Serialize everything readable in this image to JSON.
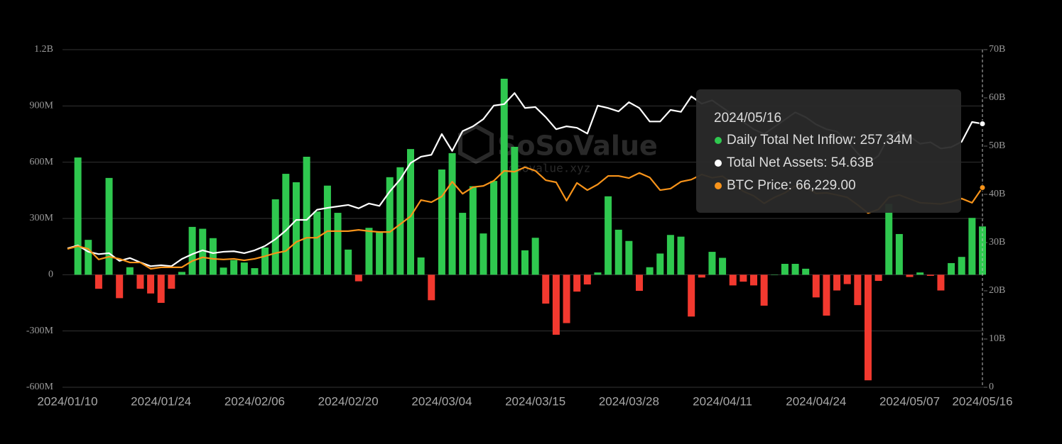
{
  "chart_data": {
    "type": "bar",
    "watermark": {
      "brand": "SoSoValue",
      "site": "sosovalue.xyz"
    },
    "categories": [
      "2024/01/10",
      null,
      null,
      null,
      null,
      null,
      null,
      null,
      null,
      "2024/01/24",
      null,
      null,
      null,
      null,
      null,
      null,
      null,
      null,
      "2024/02/06",
      null,
      null,
      null,
      null,
      null,
      null,
      null,
      null,
      "2024/02/20",
      null,
      null,
      null,
      null,
      null,
      null,
      null,
      null,
      "2024/03/04",
      null,
      null,
      null,
      null,
      null,
      null,
      null,
      null,
      "2024/03/15",
      null,
      null,
      null,
      null,
      null,
      null,
      null,
      null,
      "2024/03/28",
      null,
      null,
      null,
      null,
      null,
      null,
      null,
      null,
      "2024/04/11",
      null,
      null,
      null,
      null,
      null,
      null,
      null,
      null,
      "2024/04/24",
      null,
      null,
      null,
      null,
      null,
      null,
      null,
      null,
      "2024/05/07",
      null,
      null,
      null,
      null,
      null,
      null,
      "2024/05/16"
    ],
    "series": [
      {
        "name": "Daily Total Net Inflow",
        "type": "bar",
        "colors": {
          "positive": "#2fc84f",
          "negative": "#f2392f"
        },
        "values": [
          null,
          625,
          186,
          -75,
          516,
          -125,
          40,
          -75,
          -100,
          -150,
          -75,
          15,
          255,
          245,
          195,
          38,
          78,
          65,
          35,
          145,
          402,
          538,
          493,
          629,
          337,
          475,
          330,
          134,
          -35,
          250,
          225,
          520,
          573,
          670,
          92,
          -136,
          561,
          648,
          330,
          472,
          220,
          500,
          1045,
          682,
          130,
          197,
          -154,
          -320,
          -258,
          -90,
          -52,
          12,
          418,
          240,
          180,
          -86,
          40,
          113,
          212,
          203,
          -223,
          -15,
          122,
          90,
          -57,
          -37,
          -57,
          -165,
          0,
          58,
          58,
          32,
          -121,
          -218,
          -84,
          -50,
          -162,
          -563,
          -33,
          378,
          217,
          -12,
          12,
          -6,
          -84,
          62,
          95,
          303,
          257.34
        ],
        "value_labels": [
          null,
          null,
          null,
          null,
          null,
          null,
          null,
          null,
          null,
          null,
          null,
          null,
          null,
          null,
          null,
          null,
          null,
          null,
          null,
          null,
          null,
          null,
          null,
          null,
          null,
          null,
          null,
          null,
          null,
          null,
          null,
          null,
          null,
          null,
          null,
          null,
          null,
          null,
          null,
          null,
          null,
          null,
          null,
          null,
          null,
          null,
          null,
          null,
          null,
          null,
          null,
          null,
          null,
          null,
          null,
          null,
          null,
          null,
          null,
          null,
          null,
          null,
          null,
          null,
          null,
          null,
          null,
          null,
          null,
          null,
          null,
          null,
          null,
          null,
          null,
          null,
          null,
          null,
          null,
          null,
          null,
          null,
          null,
          null,
          null,
          null,
          null,
          null,
          "257.34M"
        ]
      },
      {
        "name": "Total Net Assets",
        "type": "line",
        "axis": "y2",
        "color": "#ffffff",
        "values": [
          28.8,
          29.4,
          28.1,
          27.6,
          27.8,
          26.2,
          26.8,
          25.9,
          25.1,
          25.3,
          25.1,
          26.6,
          27.6,
          28.4,
          27.8,
          28.1,
          28.2,
          27.8,
          28.4,
          29.3,
          30.7,
          32.5,
          34.7,
          34.7,
          36.8,
          37.2,
          37.5,
          37.8,
          37.1,
          38.1,
          37.6,
          40.6,
          43.1,
          46.5,
          47.8,
          48.2,
          52.5,
          49.0,
          53.1,
          54.1,
          55.6,
          58.4,
          58.7,
          61.0,
          57.9,
          58.1,
          56.0,
          53.5,
          54.1,
          53.8,
          52.6,
          58.4,
          57.9,
          57.2,
          59.1,
          57.9,
          55.1,
          55.1,
          57.5,
          57.1,
          60.3,
          58.8,
          59.5,
          58.0,
          56.5,
          55.0,
          53.5,
          52.5,
          54.0,
          55.5,
          57.0,
          56.0,
          54.5,
          53.5,
          53.0,
          51.0,
          48.5,
          46.5,
          48.0,
          52.0,
          53.0,
          52.0,
          50.5,
          50.8,
          49.5,
          49.8,
          50.9,
          55.0,
          54.63
        ],
        "value_labels": [
          null,
          null,
          null,
          null,
          null,
          null,
          null,
          null,
          null,
          null,
          null,
          null,
          null,
          null,
          null,
          null,
          null,
          null,
          null,
          null,
          null,
          null,
          null,
          null,
          null,
          null,
          null,
          null,
          null,
          null,
          null,
          null,
          null,
          null,
          null,
          null,
          null,
          null,
          null,
          null,
          null,
          null,
          null,
          null,
          null,
          null,
          null,
          null,
          null,
          null,
          null,
          null,
          null,
          null,
          null,
          null,
          null,
          null,
          null,
          null,
          null,
          null,
          null,
          null,
          null,
          null,
          null,
          null,
          null,
          null,
          null,
          null,
          null,
          null,
          null,
          null,
          null,
          null,
          null,
          null,
          null,
          null,
          null,
          null,
          null,
          null,
          null,
          null,
          "54.63B"
        ]
      },
      {
        "name": "BTC Price",
        "type": "line",
        "axis": "y3",
        "color": "#f7931a",
        "values": [
          45900,
          46800,
          45900,
          42400,
          43300,
          42600,
          41400,
          41400,
          39300,
          39800,
          39800,
          39800,
          41900,
          43100,
          42600,
          42400,
          42600,
          42100,
          42600,
          43500,
          44500,
          45200,
          48200,
          49600,
          49600,
          51800,
          51800,
          51800,
          52200,
          51800,
          51500,
          51500,
          54100,
          56700,
          62100,
          61400,
          63300,
          68200,
          64200,
          66400,
          66800,
          68500,
          71800,
          71500,
          73000,
          71800,
          68700,
          68000,
          61900,
          67800,
          65400,
          67300,
          70100,
          70100,
          69400,
          71100,
          69600,
          65400,
          65900,
          68200,
          68900,
          70600,
          69500,
          70000,
          67500,
          65000,
          63500,
          61000,
          63000,
          64500,
          66800,
          66500,
          64300,
          64500,
          63800,
          63000,
          60500,
          57800,
          59000,
          63000,
          63800,
          62500,
          61200,
          61000,
          60800,
          61500,
          62600,
          61200,
          66229
        ],
        "value_labels": [
          null,
          null,
          null,
          null,
          null,
          null,
          null,
          null,
          null,
          null,
          null,
          null,
          null,
          null,
          null,
          null,
          null,
          null,
          null,
          null,
          null,
          null,
          null,
          null,
          null,
          null,
          null,
          null,
          null,
          null,
          null,
          null,
          null,
          null,
          null,
          null,
          null,
          null,
          null,
          null,
          null,
          null,
          null,
          null,
          null,
          null,
          null,
          null,
          null,
          null,
          null,
          null,
          null,
          null,
          null,
          null,
          null,
          null,
          null,
          null,
          null,
          null,
          null,
          null,
          null,
          null,
          null,
          null,
          null,
          null,
          null,
          null,
          null,
          null,
          null,
          null,
          null,
          null,
          null,
          null,
          null,
          null,
          null,
          null,
          null,
          null,
          null,
          null,
          "66,229.00"
        ]
      }
    ],
    "ylim": [
      -600,
      1200
    ],
    "yticks": [
      {
        "value": 1200,
        "label": "1.2B"
      },
      {
        "value": 900,
        "label": "900M"
      },
      {
        "value": 600,
        "label": "600M"
      },
      {
        "value": 300,
        "label": "300M"
      },
      0,
      {
        "value": -300,
        "label": "-300M"
      },
      {
        "value": -600,
        "label": "-600M"
      }
    ],
    "y2lim": [
      0,
      70
    ],
    "y2ticks": [
      {
        "value": 70,
        "label": "70B"
      },
      {
        "value": 60,
        "label": "60B"
      },
      {
        "value": 50,
        "label": "50B"
      },
      {
        "value": 40,
        "label": "40B"
      },
      {
        "value": 30,
        "label": "30B"
      },
      {
        "value": 20,
        "label": "20B"
      },
      {
        "value": 10,
        "label": "10B"
      },
      0
    ],
    "y3lim": [
      0,
      112000
    ],
    "grid": true
  }
}
